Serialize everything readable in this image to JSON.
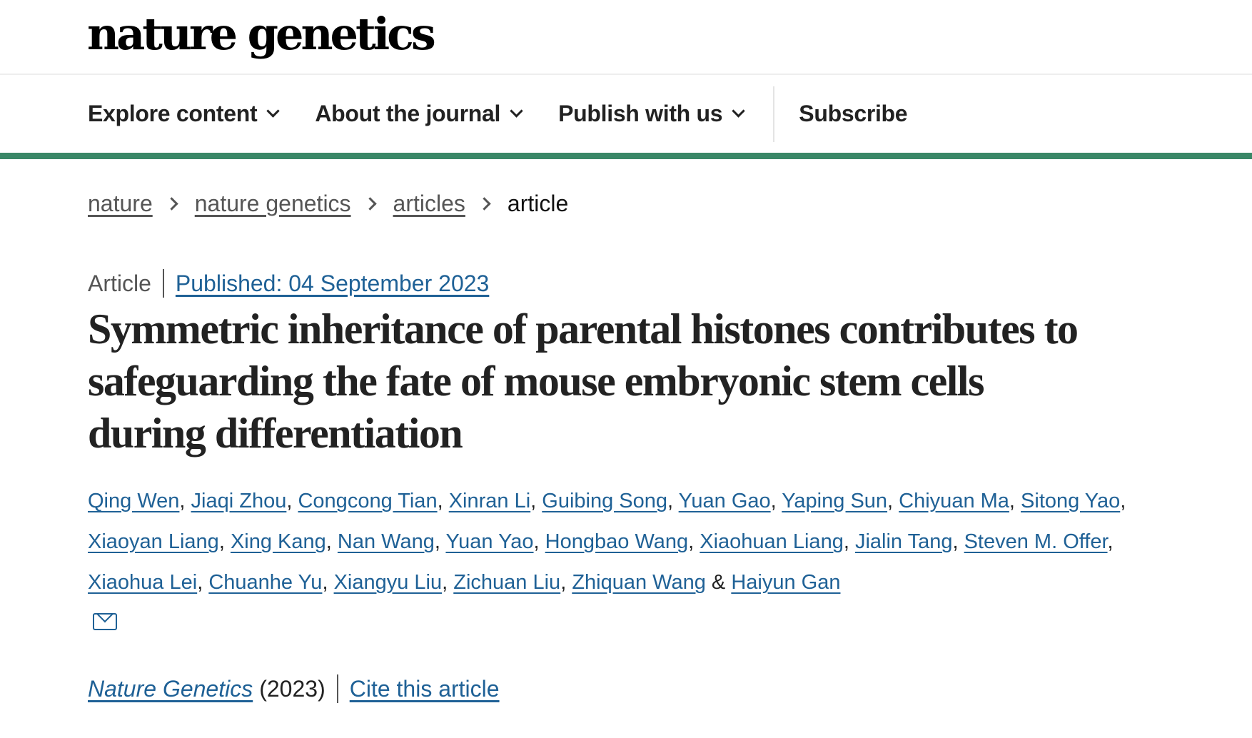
{
  "logo": "nature genetics",
  "nav": {
    "items": [
      {
        "label": "Explore content",
        "dropdown": true
      },
      {
        "label": "About the journal",
        "dropdown": true
      },
      {
        "label": "Publish with us",
        "dropdown": true
      }
    ],
    "subscribe": "Subscribe"
  },
  "accent_color": "#3a8767",
  "link_color": "#1f6196",
  "breadcrumb": {
    "items": [
      "nature",
      "nature genetics",
      "articles"
    ],
    "current": "article"
  },
  "meta": {
    "type": "Article",
    "published": "Published: 04 September 2023"
  },
  "title": "Symmetric inheritance of parental histones contributes to safeguarding the fate of mouse embryonic stem cells during differentiation",
  "authors": [
    "Qing Wen",
    "Jiaqi Zhou",
    "Congcong Tian",
    "Xinran Li",
    "Guibing Song",
    "Yuan Gao",
    "Yaping Sun",
    "Chiyuan Ma",
    "Sitong Yao",
    "Xiaoyan Liang",
    "Xing Kang",
    "Nan Wang",
    "Yuan Yao",
    "Hongbao Wang",
    "Xiaohuan Liang",
    "Jialin Tang",
    "Steven M. Offer",
    "Xiaohua Lei",
    "Chuanhe Yu",
    "Xiangyu Liu",
    "Zichuan Liu",
    "Zhiquan Wang",
    "Haiyun Gan"
  ],
  "authors_last_sep": " & ",
  "footer": {
    "journal": "Nature Genetics",
    "year": "(2023)",
    "cite": "Cite this article"
  }
}
